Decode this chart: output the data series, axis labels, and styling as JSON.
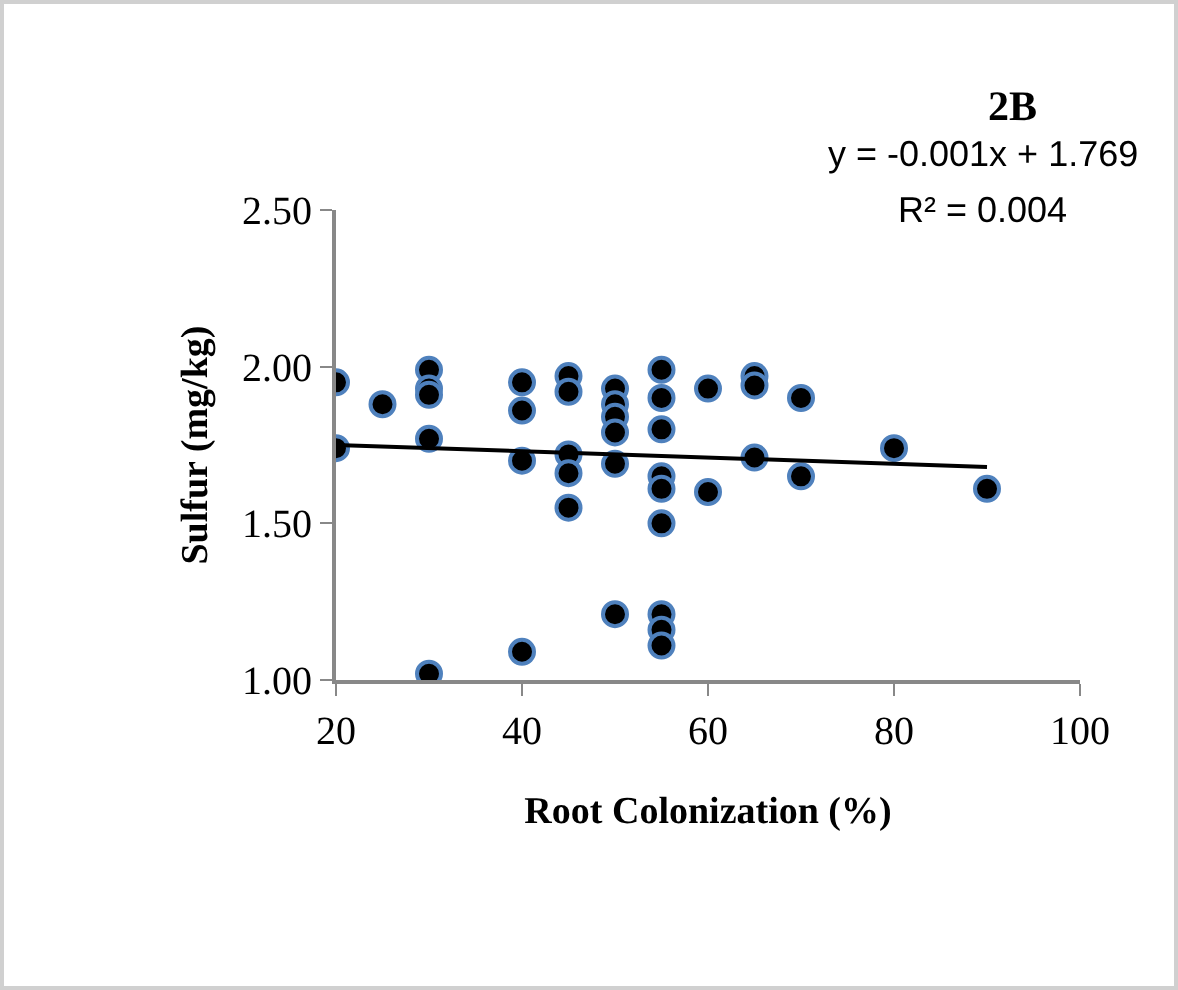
{
  "chart_data": {
    "type": "scatter",
    "title": "2B",
    "xlabel": "Root Colonization (%)",
    "ylabel": "Sulfur (mg/kg)",
    "annotations": [
      "y = -0.001x + 1.769",
      "R² = 0.004"
    ],
    "xlim": [
      20,
      100
    ],
    "xticks": [
      20,
      40,
      60,
      80,
      100
    ],
    "ylim": [
      1,
      2.5
    ],
    "yticks": [
      {
        "value": 1,
        "label": "1.00"
      },
      {
        "value": 1.5,
        "label": "1.50"
      },
      {
        "value": 2,
        "label": "2.00"
      },
      {
        "value": 2.5,
        "label": "2.50"
      }
    ],
    "grid": false,
    "marker": "circle",
    "series": [
      {
        "color": "#000000",
        "x": [
          20,
          20,
          25,
          30,
          30,
          30,
          30,
          30,
          40,
          40,
          40,
          40,
          45,
          45,
          45,
          45,
          45,
          50,
          50,
          50,
          50,
          50,
          50,
          55,
          55,
          55,
          55,
          55,
          55,
          55,
          55,
          55,
          60,
          60,
          65,
          65,
          65,
          70,
          70,
          80,
          90
        ],
        "values": [
          1.95,
          1.74,
          1.88,
          1.99,
          1.93,
          1.91,
          1.77,
          1.02,
          1.95,
          1.86,
          1.7,
          1.09,
          1.97,
          1.92,
          1.72,
          1.66,
          1.55,
          1.93,
          1.88,
          1.84,
          1.79,
          1.69,
          1.21,
          1.99,
          1.9,
          1.8,
          1.65,
          1.5,
          1.21,
          1.16,
          1.11,
          1.61,
          1.93,
          1.6,
          1.97,
          1.94,
          1.71,
          1.9,
          1.65,
          1.74,
          1.61
        ]
      },
      {
        "type": "line",
        "color": "#000000",
        "marker": "none",
        "x": [
          20,
          90
        ],
        "values": [
          1.75,
          1.68
        ]
      }
    ]
  }
}
